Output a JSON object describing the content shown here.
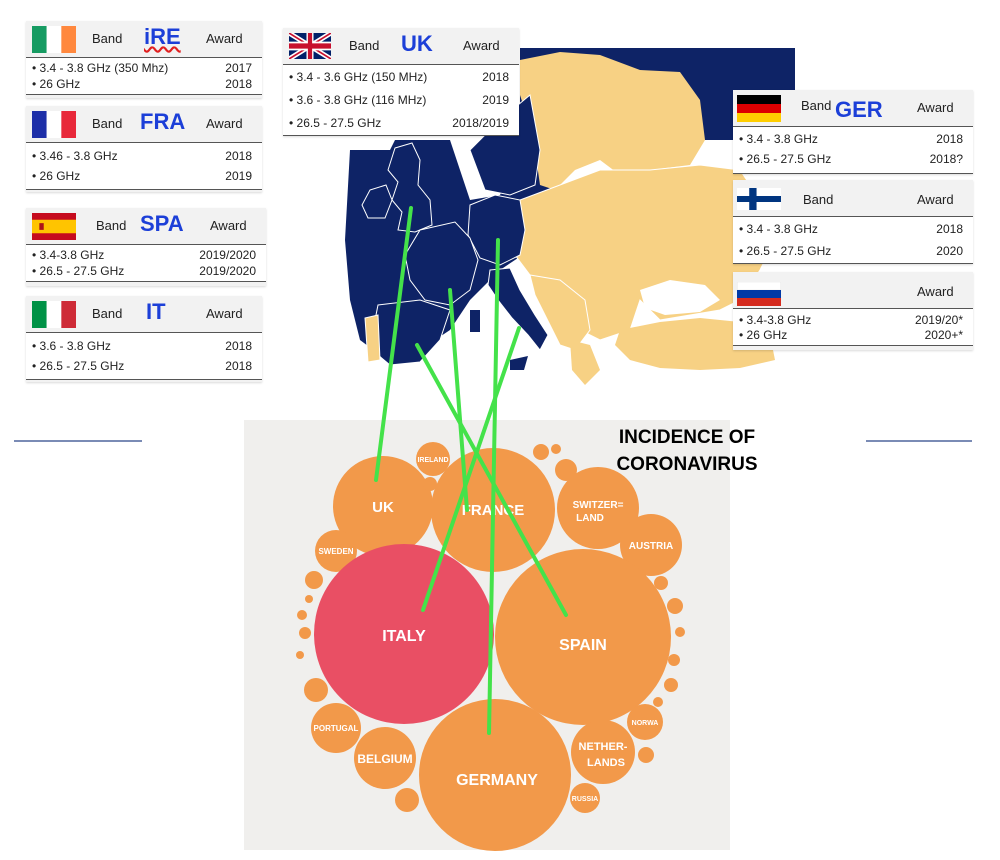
{
  "colors": {
    "band_code": "#1c3fd8",
    "map_sea": "#0e2366",
    "map_land_highlight": "#0e2366",
    "map_land_other": "#f7d184",
    "bubble_orange": "#f2994a",
    "bubble_red": "#e94f64",
    "link_line": "#44e24a"
  },
  "cards": {
    "ire": {
      "band": "Band",
      "code": "iRE",
      "award": "Award",
      "flag": "ireland-flag",
      "rows": [
        {
          "band": "• 3.4 - 3.8 GHz (350 Mhz)",
          "year": "2017"
        },
        {
          "band": "• 26 GHz",
          "year": "2018"
        }
      ]
    },
    "fra": {
      "band": "Band",
      "code": "FRA",
      "award": "Award",
      "flag": "france-flag",
      "rows": [
        {
          "band": "• 3.46 - 3.8 GHz",
          "year": "2018"
        },
        {
          "band": "• 26 GHz",
          "year": "2019"
        }
      ]
    },
    "spa": {
      "band": "Band",
      "code": "SPA",
      "award": "Award",
      "flag": "spain-flag",
      "rows": [
        {
          "band": "• 3.4-3.8 GHz",
          "year": "2019/2020"
        },
        {
          "band": "• 26.5 - 27.5 GHz",
          "year": "2019/2020"
        }
      ]
    },
    "it": {
      "band": "Band",
      "code": "IT",
      "award": "Award",
      "flag": "italy-flag",
      "rows": [
        {
          "band": "• 3.6 - 3.8 GHz",
          "year": "2018"
        },
        {
          "band": "• 26.5 - 27.5 GHz",
          "year": "2018"
        }
      ]
    },
    "uk": {
      "band": "Band",
      "code": "UK",
      "award": "Award",
      "flag": "uk-flag",
      "rows": [
        {
          "band": "• 3.4 - 3.6 GHz (150 MHz)",
          "year": "2018"
        },
        {
          "band": "• 3.6 - 3.8 GHz (116 MHz)",
          "year": "2019"
        },
        {
          "band": "• 26.5 - 27.5 GHz",
          "year": "2018/2019"
        }
      ]
    },
    "ger": {
      "band": "Band",
      "code": "GER",
      "award": "Award",
      "flag": "germany-flag",
      "rows": [
        {
          "band": "• 3.4 - 3.8 GHz",
          "year": "2018"
        },
        {
          "band": "• 26.5 - 27.5 GHz",
          "year": "2018?"
        }
      ]
    },
    "fin": {
      "band": "Band",
      "code": "",
      "award": "Award",
      "flag": "finland-flag",
      "rows": [
        {
          "band": "• 3.4 - 3.8 GHz",
          "year": "2018"
        },
        {
          "band": "• 26.5 - 27.5 GHz",
          "year": "2020"
        }
      ]
    },
    "rus": {
      "band": "",
      "code": "",
      "award": "Award",
      "flag": "russia-flag",
      "rows": [
        {
          "band": "• 3.4-3.8 GHz",
          "year": "2019/20*"
        },
        {
          "band": "• 26 GHz",
          "year": "2020+*"
        }
      ]
    }
  },
  "incidence": {
    "title_line1": "INCIDENCE OF",
    "title_line2": "CORONAVIRUS"
  },
  "bubbles": {
    "uk": "UK",
    "france": "FRANCE",
    "italy": "ITALY",
    "spain": "SPAIN",
    "germany": "GERMANY",
    "switzerland_1": "SWITZER=",
    "switzerland_2": "LAND",
    "austria": "AUSTRIA",
    "ireland": "IRELAND",
    "sweden": "SWEDEN",
    "portugal": "PORTUGAL",
    "belgium": "BELGIUM",
    "netherlands_1": "NETHER-",
    "netherlands_2": "LANDS",
    "norway": "NORWA",
    "russia": "RUSSIA"
  }
}
